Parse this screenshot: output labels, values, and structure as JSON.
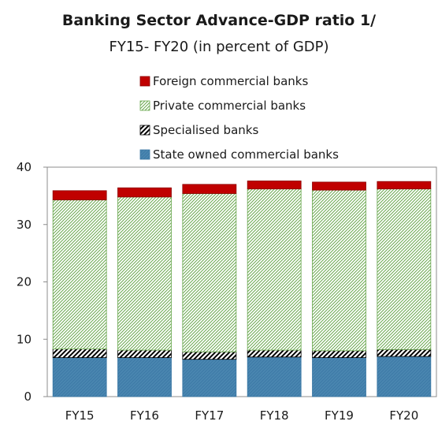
{
  "chart_data": {
    "type": "bar",
    "stacked": true,
    "title": "Banking Sector Advance-GDP ratio 1/",
    "subtitle": "FY15- FY20 (in percent of GDP)",
    "categories": [
      "FY15",
      "FY16",
      "FY17",
      "FY18",
      "FY19",
      "FY20"
    ],
    "series": [
      {
        "name": "State owned commercial banks",
        "color": "#4a86b0",
        "values": [
          6.8,
          6.8,
          6.5,
          6.9,
          6.8,
          7.0
        ]
      },
      {
        "name": "Specialised banks",
        "color": "#000000",
        "values": [
          1.5,
          1.3,
          1.3,
          1.2,
          1.2,
          1.2
        ]
      },
      {
        "name": "Private commercial banks",
        "color": "#6aa84f",
        "values": [
          26.0,
          26.7,
          27.6,
          28.1,
          28.0,
          28.0
        ]
      },
      {
        "name": "Foreign commercial banks",
        "color": "#c00000",
        "values": [
          1.6,
          1.6,
          1.6,
          1.4,
          1.4,
          1.3
        ]
      }
    ],
    "legend_order": [
      "Foreign commercial banks",
      "Private commercial banks",
      "Specialised banks",
      "State owned commercial banks"
    ],
    "ylim": [
      0,
      40
    ],
    "yticks": [
      0,
      10,
      20,
      30,
      40
    ],
    "xlabel": "",
    "ylabel": "",
    "grid": false,
    "legend_position": "top"
  }
}
